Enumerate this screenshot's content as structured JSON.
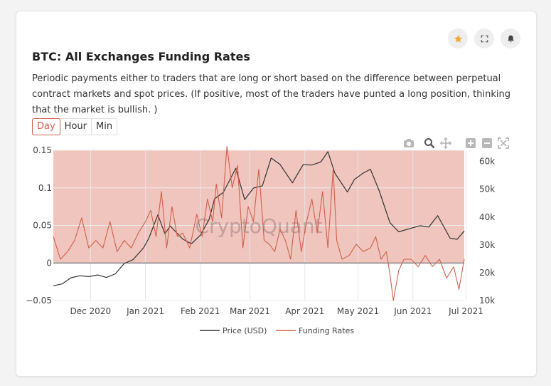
{
  "card": {
    "title": "BTC: All Exchanges Funding Rates",
    "description": "Periodic payments either to traders that are long or short based on the difference between perpetual contract markets and spot prices. (If positive, most of the traders have punted a long position, thinking that the market is bullish. )",
    "tabs": [
      "Day",
      "Hour",
      "Min"
    ],
    "active_tab": "Day",
    "icons": [
      "star-icon",
      "expand-icon",
      "bell-icon"
    ],
    "modebar_icons": [
      "camera-icon",
      "zoom-icon",
      "pan-icon",
      "zoom-in-icon",
      "zoom-out-icon",
      "autoscale-icon"
    ]
  },
  "colors": {
    "price": "#333333",
    "funding": "#d0604a",
    "positive_fill": "#e9b2a8",
    "star": "#f0a733"
  },
  "chart_data": {
    "type": "line",
    "watermark": "CryptoQuant",
    "x_ticks": [
      "Dec 2020",
      "Jan 2021",
      "Feb 2021",
      "Mar 2021",
      "Apr 2021",
      "May 2021",
      "Jun 2021",
      "Jul 2021"
    ],
    "x_tick_dates": [
      "2020-12-01",
      "2021-01-01",
      "2021-02-01",
      "2021-03-01",
      "2021-04-01",
      "2021-05-01",
      "2021-06-01",
      "2021-07-01"
    ],
    "x_range": [
      "2020-11-10",
      "2021-06-30"
    ],
    "y_left": {
      "range": [
        -0.05,
        0.15
      ],
      "ticks": [
        "−0.05",
        "0",
        "0.05",
        "0.1",
        "0.15"
      ],
      "tick_values": [
        -0.05,
        0,
        0.05,
        0.1,
        0.15
      ]
    },
    "y_right": {
      "range": [
        10000,
        64000
      ],
      "ticks": [
        "10k",
        "20k",
        "30k",
        "40k",
        "50k",
        "60k"
      ],
      "tick_values": [
        10000,
        20000,
        30000,
        40000,
        50000,
        60000
      ]
    },
    "legend": {
      "position": "bottom",
      "entries": [
        "Price (USD)",
        "Funding Rates"
      ]
    },
    "series": [
      {
        "name": "Price (USD)",
        "axis": "right",
        "x": [
          "2020-11-10",
          "2020-11-15",
          "2020-11-20",
          "2020-11-25",
          "2020-11-30",
          "2020-12-05",
          "2020-12-10",
          "2020-12-15",
          "2020-12-20",
          "2020-12-25",
          "2020-12-31",
          "2021-01-03",
          "2021-01-08",
          "2021-01-12",
          "2021-01-15",
          "2021-01-22",
          "2021-01-27",
          "2021-02-01",
          "2021-02-06",
          "2021-02-09",
          "2021-02-14",
          "2021-02-21",
          "2021-02-26",
          "2021-03-03",
          "2021-03-08",
          "2021-03-13",
          "2021-03-18",
          "2021-03-25",
          "2021-03-31",
          "2021-04-05",
          "2021-04-10",
          "2021-04-14",
          "2021-04-18",
          "2021-04-25",
          "2021-04-29",
          "2021-05-04",
          "2021-05-08",
          "2021-05-13",
          "2021-05-19",
          "2021-05-24",
          "2021-05-30",
          "2021-06-05",
          "2021-06-10",
          "2021-06-15",
          "2021-06-22",
          "2021-06-26",
          "2021-06-30"
        ],
        "values": [
          15300,
          16000,
          18200,
          18900,
          18600,
          19200,
          18300,
          19600,
          23300,
          24700,
          29000,
          32500,
          40800,
          34000,
          36800,
          32100,
          30400,
          33500,
          39200,
          46500,
          48900,
          57500,
          46300,
          50400,
          51200,
          61200,
          58900,
          52300,
          58800,
          58700,
          59800,
          63500,
          55700,
          49000,
          53500,
          55800,
          57200,
          49400,
          38000,
          34700,
          35800,
          36900,
          36400,
          40500,
          32400,
          32000,
          35000
        ]
      },
      {
        "name": "Funding Rates",
        "axis": "left",
        "x": [
          "2020-11-10",
          "2020-11-14",
          "2020-11-18",
          "2020-11-22",
          "2020-11-26",
          "2020-11-30",
          "2020-12-04",
          "2020-12-08",
          "2020-12-12",
          "2020-12-16",
          "2020-12-20",
          "2020-12-24",
          "2020-12-28",
          "2021-01-01",
          "2021-01-04",
          "2021-01-07",
          "2021-01-10",
          "2021-01-13",
          "2021-01-16",
          "2021-01-19",
          "2021-01-22",
          "2021-01-26",
          "2021-01-30",
          "2021-02-02",
          "2021-02-05",
          "2021-02-08",
          "2021-02-10",
          "2021-02-13",
          "2021-02-16",
          "2021-02-19",
          "2021-02-22",
          "2021-02-25",
          "2021-02-28",
          "2021-03-03",
          "2021-03-06",
          "2021-03-09",
          "2021-03-12",
          "2021-03-15",
          "2021-03-18",
          "2021-03-21",
          "2021-03-24",
          "2021-03-27",
          "2021-03-30",
          "2021-04-02",
          "2021-04-05",
          "2021-04-08",
          "2021-04-11",
          "2021-04-14",
          "2021-04-17",
          "2021-04-19",
          "2021-04-22",
          "2021-04-26",
          "2021-04-30",
          "2021-05-04",
          "2021-05-08",
          "2021-05-11",
          "2021-05-14",
          "2021-05-17",
          "2021-05-19",
          "2021-05-21",
          "2021-05-24",
          "2021-05-27",
          "2021-05-31",
          "2021-06-04",
          "2021-06-08",
          "2021-06-12",
          "2021-06-16",
          "2021-06-20",
          "2021-06-24",
          "2021-06-27",
          "2021-06-30"
        ],
        "values": [
          0.035,
          0.005,
          0.015,
          0.03,
          0.06,
          0.02,
          0.03,
          0.02,
          0.055,
          0.015,
          0.03,
          0.02,
          0.04,
          0.055,
          0.07,
          0.035,
          0.095,
          0.02,
          0.075,
          0.035,
          0.04,
          0.02,
          0.065,
          0.035,
          0.085,
          0.055,
          0.105,
          0.06,
          0.155,
          0.1,
          0.13,
          0.02,
          0.075,
          0.055,
          0.125,
          0.03,
          0.025,
          0.015,
          0.045,
          0.03,
          0.005,
          0.07,
          0.015,
          0.055,
          0.085,
          0.04,
          0.095,
          0.02,
          0.125,
          0.03,
          0.005,
          0.01,
          0.025,
          0.015,
          0.02,
          0.035,
          0.005,
          0.015,
          -0.015,
          -0.05,
          -0.01,
          0.005,
          0.005,
          -0.005,
          0.01,
          -0.005,
          0.005,
          -0.02,
          -0.005,
          -0.035,
          0.005
        ]
      }
    ]
  }
}
